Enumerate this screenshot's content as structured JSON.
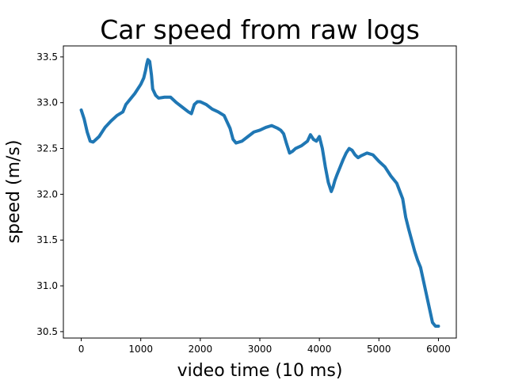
{
  "chart_data": {
    "type": "line",
    "title": "Car speed from raw logs",
    "xlabel": "video time (10 ms)",
    "ylabel": "speed (m/s)",
    "xlim": [
      -300,
      6300
    ],
    "ylim": [
      30.43,
      33.62
    ],
    "xticks": [
      0,
      1000,
      2000,
      3000,
      4000,
      5000,
      6000
    ],
    "yticks": [
      30.5,
      31.0,
      31.5,
      32.0,
      32.5,
      33.0,
      33.5
    ],
    "xtick_labels": [
      "0",
      "1000",
      "2000",
      "3000",
      "4000",
      "5000",
      "6000"
    ],
    "ytick_labels": [
      "30.5",
      "31.0",
      "31.5",
      "32.0",
      "32.5",
      "33.0",
      "33.5"
    ],
    "grid": false,
    "series": [
      {
        "color": "#1f77b4",
        "x": [
          0,
          50,
          100,
          150,
          200,
          250,
          300,
          400,
          500,
          600,
          700,
          750,
          800,
          900,
          1000,
          1050,
          1080,
          1100,
          1120,
          1150,
          1180,
          1200,
          1250,
          1300,
          1400,
          1500,
          1600,
          1700,
          1800,
          1850,
          1900,
          1950,
          2000,
          2100,
          2200,
          2300,
          2400,
          2500,
          2550,
          2600,
          2700,
          2800,
          2900,
          3000,
          3100,
          3200,
          3300,
          3350,
          3400,
          3450,
          3500,
          3550,
          3600,
          3700,
          3800,
          3850,
          3900,
          3950,
          4000,
          4050,
          4100,
          4150,
          4200,
          4230,
          4260,
          4300,
          4350,
          4400,
          4450,
          4500,
          4550,
          4600,
          4650,
          4700,
          4800,
          4900,
          5000,
          5100,
          5200,
          5300,
          5400,
          5450,
          5500,
          5550,
          5600,
          5650,
          5700,
          5750,
          5800,
          5850,
          5900,
          5950,
          6000
        ],
        "y": [
          32.92,
          32.82,
          32.68,
          32.58,
          32.57,
          32.6,
          32.63,
          32.73,
          32.8,
          32.86,
          32.9,
          32.98,
          33.02,
          33.1,
          33.2,
          33.27,
          33.35,
          33.42,
          33.47,
          33.45,
          33.3,
          33.15,
          33.08,
          33.05,
          33.06,
          33.06,
          33.0,
          32.95,
          32.9,
          32.88,
          32.98,
          33.01,
          33.01,
          32.98,
          32.93,
          32.9,
          32.86,
          32.72,
          32.6,
          32.56,
          32.58,
          32.63,
          32.68,
          32.7,
          32.73,
          32.75,
          32.72,
          32.7,
          32.66,
          32.55,
          32.45,
          32.47,
          32.5,
          32.53,
          32.58,
          32.65,
          32.6,
          32.58,
          32.63,
          32.5,
          32.3,
          32.13,
          32.03,
          32.08,
          32.15,
          32.22,
          32.3,
          32.38,
          32.45,
          32.5,
          32.48,
          32.43,
          32.4,
          32.42,
          32.45,
          32.43,
          32.36,
          32.3,
          32.2,
          32.12,
          31.95,
          31.75,
          31.62,
          31.5,
          31.38,
          31.28,
          31.2,
          31.05,
          30.9,
          30.75,
          30.6,
          30.56,
          30.56
        ]
      }
    ]
  }
}
